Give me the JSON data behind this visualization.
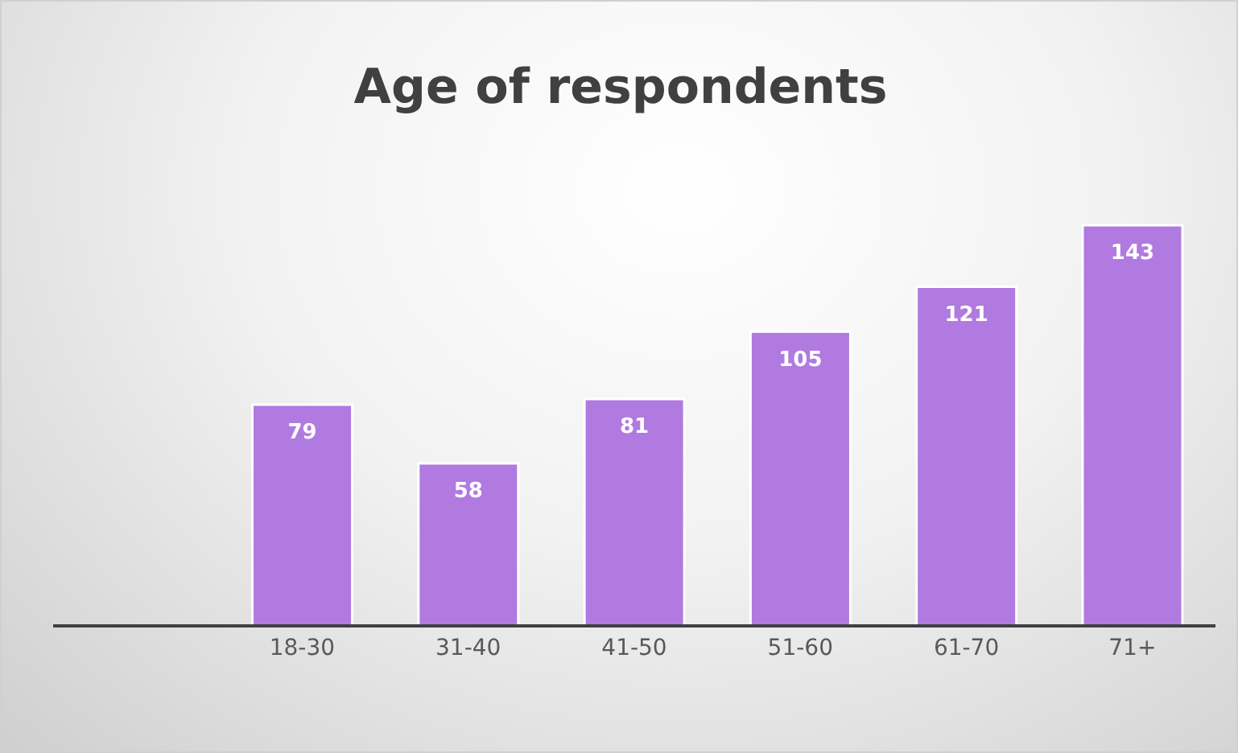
{
  "chart_data": {
    "type": "bar",
    "title": "Age of respondents",
    "categories": [
      null,
      "18-30",
      "31-40",
      "41-50",
      "51-60",
      "61-70",
      "71+"
    ],
    "values": [
      null,
      79,
      58,
      81,
      105,
      121,
      143
    ],
    "color": "#b07ae0",
    "data_labels": true,
    "grid": false,
    "legend": false
  }
}
